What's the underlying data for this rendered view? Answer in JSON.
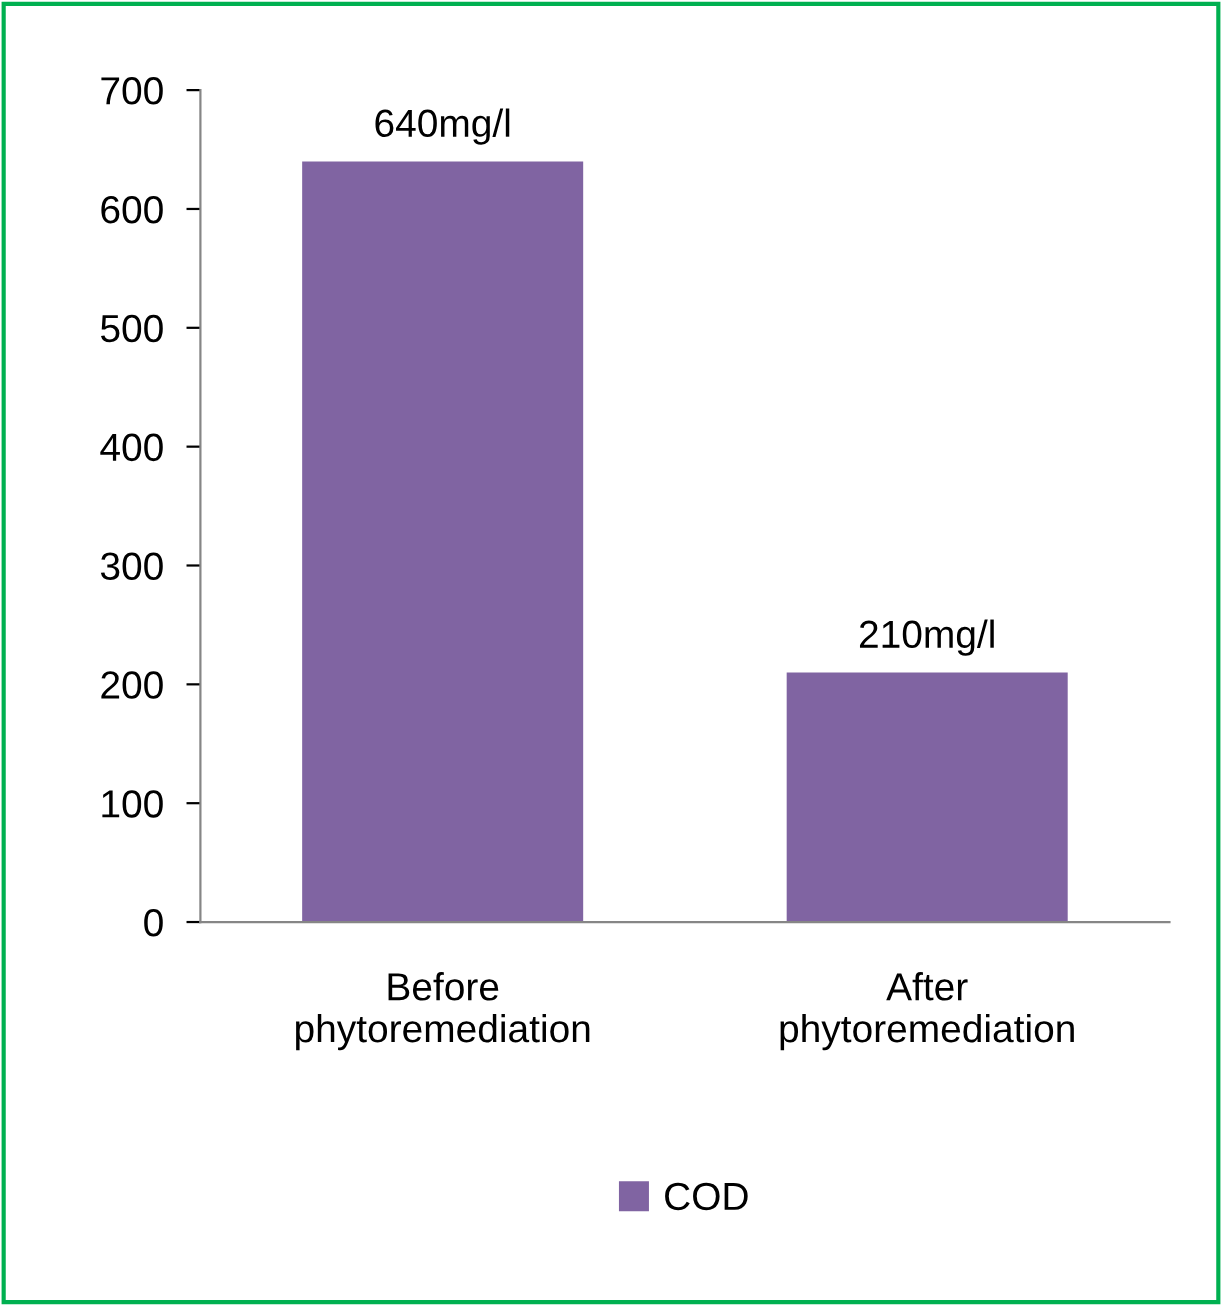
{
  "chart_data": {
    "type": "bar",
    "categories": [
      "Before\nphytoremediation",
      "After\nphytoremediation"
    ],
    "series": [
      {
        "name": "COD",
        "color": "#8064a2",
        "values": [
          640,
          210
        ],
        "value_labels": [
          "640mg/l",
          "210mg/l"
        ]
      }
    ],
    "ylim": [
      0,
      700
    ],
    "yticks": [
      0,
      100,
      200,
      300,
      400,
      500,
      600,
      700
    ],
    "grid": false,
    "legend": "bottom"
  }
}
